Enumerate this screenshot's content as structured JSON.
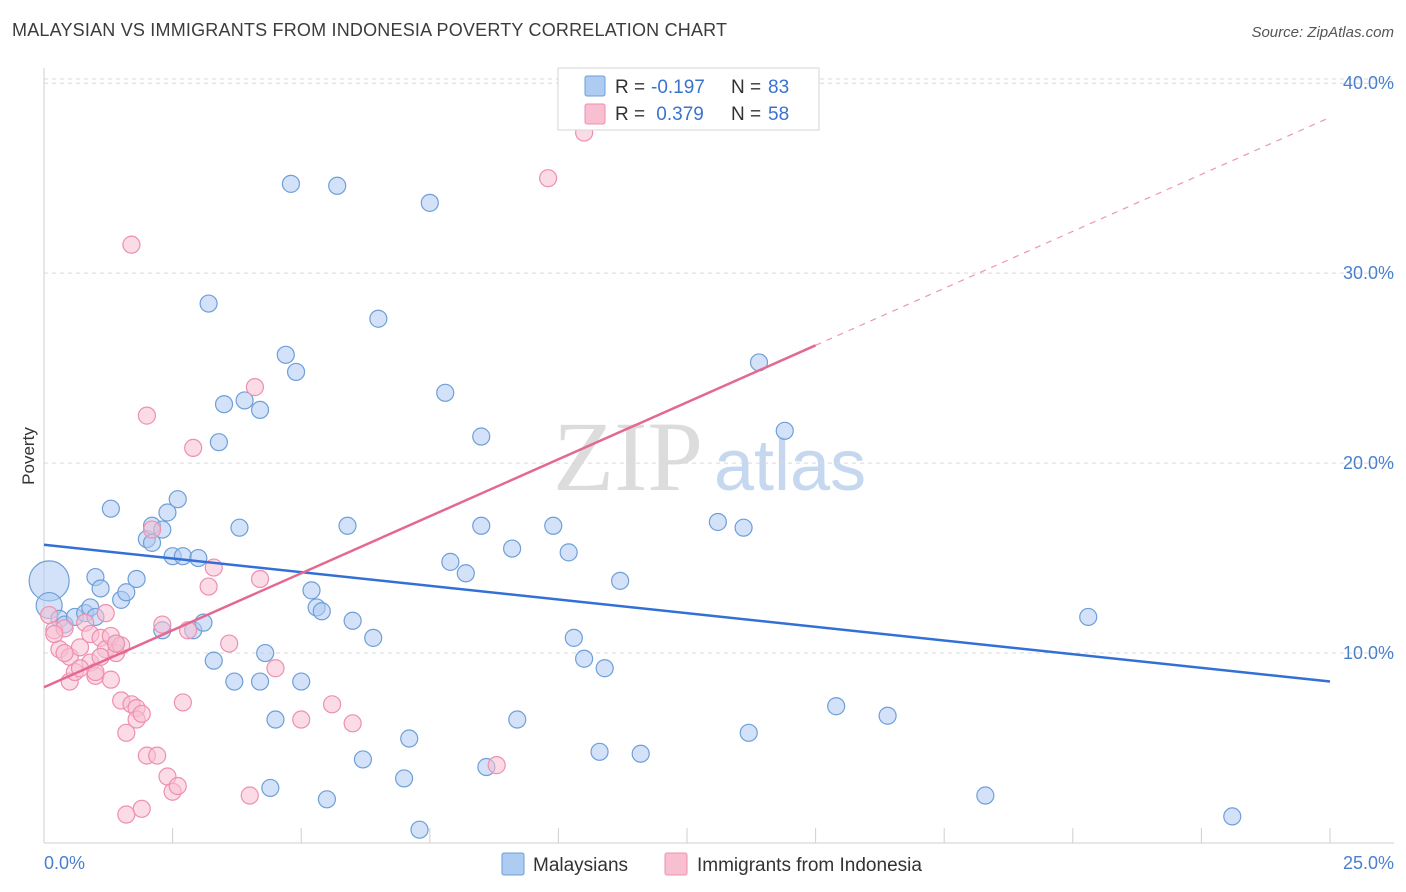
{
  "header": {
    "title": "MALAYSIAN VS IMMIGRANTS FROM INDONESIA POVERTY CORRELATION CHART",
    "source": "Source: ZipAtlas.com"
  },
  "watermark": {
    "zip": "ZIP",
    "atlas": "atlas"
  },
  "colors": {
    "malaysian_fill": "#aecbf2",
    "malaysian_stroke": "#6e9fd8",
    "malaysian_line": "#3370d6",
    "indonesia_fill": "#f8bfd1",
    "indonesia_stroke": "#ee8fb0",
    "indonesia_line": "#e4698f",
    "value_text": "#3a73cf",
    "grid": "#d9d9d9"
  },
  "legend": {
    "rows": [
      {
        "r_label": "R =",
        "r_value": "-0.197",
        "n_label": "N =",
        "n_value": "83"
      },
      {
        "r_label": "R =",
        "r_value": " 0.379",
        "n_label": "N =",
        "n_value": "58"
      }
    ]
  },
  "chart_data": {
    "type": "scatter",
    "title": "MALAYSIAN VS IMMIGRANTS FROM INDONESIA POVERTY CORRELATION CHART",
    "xlabel": "",
    "ylabel": "Poverty",
    "xlim": [
      0,
      25
    ],
    "ylim": [
      0,
      40.8
    ],
    "x_tick_labels": [
      "0.0%",
      "25.0%"
    ],
    "y_ticks": [
      10,
      20,
      30,
      40
    ],
    "y_tick_labels": [
      "10.0%",
      "20.0%",
      "30.0%",
      "40.0%"
    ],
    "grid": true,
    "series": [
      {
        "name": "Malaysians",
        "r": -0.197,
        "n": 83,
        "trend": {
          "x": [
            0,
            25
          ],
          "y": [
            15.7,
            8.5
          ]
        },
        "points": [
          {
            "x": 0.1,
            "y": 13.8,
            "s": 3
          },
          {
            "x": 0.1,
            "y": 12.5,
            "s": 2
          },
          {
            "x": 0.3,
            "y": 11.8
          },
          {
            "x": 0.4,
            "y": 11.5
          },
          {
            "x": 0.6,
            "y": 11.9
          },
          {
            "x": 0.8,
            "y": 12.1
          },
          {
            "x": 0.9,
            "y": 12.4
          },
          {
            "x": 1.0,
            "y": 11.9
          },
          {
            "x": 1.0,
            "y": 14.0
          },
          {
            "x": 1.1,
            "y": 13.4
          },
          {
            "x": 1.3,
            "y": 17.6
          },
          {
            "x": 1.4,
            "y": 10.5
          },
          {
            "x": 1.5,
            "y": 12.8
          },
          {
            "x": 1.6,
            "y": 13.2
          },
          {
            "x": 1.8,
            "y": 13.9
          },
          {
            "x": 2.0,
            "y": 16.0
          },
          {
            "x": 2.1,
            "y": 15.8
          },
          {
            "x": 2.1,
            "y": 16.7
          },
          {
            "x": 2.3,
            "y": 16.5
          },
          {
            "x": 2.3,
            "y": 11.2
          },
          {
            "x": 2.4,
            "y": 17.4
          },
          {
            "x": 2.5,
            "y": 15.1
          },
          {
            "x": 2.6,
            "y": 18.1
          },
          {
            "x": 2.7,
            "y": 15.1
          },
          {
            "x": 2.9,
            "y": 11.2
          },
          {
            "x": 3.0,
            "y": 15.0
          },
          {
            "x": 3.1,
            "y": 11.6
          },
          {
            "x": 3.2,
            "y": 28.4
          },
          {
            "x": 3.3,
            "y": 9.6
          },
          {
            "x": 3.4,
            "y": 21.1
          },
          {
            "x": 3.5,
            "y": 23.1
          },
          {
            "x": 3.7,
            "y": 8.5
          },
          {
            "x": 3.8,
            "y": 16.6
          },
          {
            "x": 3.9,
            "y": 23.3
          },
          {
            "x": 4.2,
            "y": 8.5
          },
          {
            "x": 4.2,
            "y": 22.8
          },
          {
            "x": 4.3,
            "y": 10.0
          },
          {
            "x": 4.4,
            "y": 2.9
          },
          {
            "x": 4.5,
            "y": 6.5
          },
          {
            "x": 4.7,
            "y": 25.7
          },
          {
            "x": 4.8,
            "y": 34.7
          },
          {
            "x": 4.9,
            "y": 24.8
          },
          {
            "x": 5.0,
            "y": 8.5
          },
          {
            "x": 5.2,
            "y": 13.3
          },
          {
            "x": 5.3,
            "y": 12.4
          },
          {
            "x": 5.4,
            "y": 12.2
          },
          {
            "x": 5.5,
            "y": 2.3
          },
          {
            "x": 5.7,
            "y": 34.6
          },
          {
            "x": 5.9,
            "y": 16.7
          },
          {
            "x": 6.0,
            "y": 11.7
          },
          {
            "x": 6.2,
            "y": 4.4
          },
          {
            "x": 6.4,
            "y": 10.8
          },
          {
            "x": 6.5,
            "y": 27.6
          },
          {
            "x": 7.0,
            "y": 3.4
          },
          {
            "x": 7.1,
            "y": 5.5
          },
          {
            "x": 7.3,
            "y": 0.7
          },
          {
            "x": 7.5,
            "y": 33.7
          },
          {
            "x": 7.8,
            "y": 23.7
          },
          {
            "x": 7.9,
            "y": 14.8
          },
          {
            "x": 8.2,
            "y": 14.2
          },
          {
            "x": 8.5,
            "y": 21.4
          },
          {
            "x": 8.5,
            "y": 16.7
          },
          {
            "x": 8.6,
            "y": 4.0
          },
          {
            "x": 9.1,
            "y": 15.5
          },
          {
            "x": 9.2,
            "y": 6.5
          },
          {
            "x": 9.9,
            "y": 16.7
          },
          {
            "x": 10.2,
            "y": 15.3
          },
          {
            "x": 10.3,
            "y": 10.8
          },
          {
            "x": 10.5,
            "y": 9.7
          },
          {
            "x": 10.8,
            "y": 4.8
          },
          {
            "x": 10.9,
            "y": 9.2
          },
          {
            "x": 11.2,
            "y": 13.8
          },
          {
            "x": 11.6,
            "y": 4.7
          },
          {
            "x": 13.1,
            "y": 16.9
          },
          {
            "x": 13.6,
            "y": 16.6
          },
          {
            "x": 13.7,
            "y": 5.8
          },
          {
            "x": 13.9,
            "y": 25.3
          },
          {
            "x": 14.4,
            "y": 21.7
          },
          {
            "x": 15.4,
            "y": 7.2
          },
          {
            "x": 16.4,
            "y": 6.7
          },
          {
            "x": 18.3,
            "y": 2.5
          },
          {
            "x": 20.3,
            "y": 11.9
          },
          {
            "x": 23.1,
            "y": 1.4
          }
        ]
      },
      {
        "name": "Immigrants from Indonesia",
        "r": 0.379,
        "n": 58,
        "trend": {
          "x": [
            0,
            15
          ],
          "y": [
            8.2,
            26.2
          ]
        },
        "trend_dashed": {
          "x": [
            15,
            25
          ],
          "y": [
            26.2,
            38.2
          ]
        },
        "points": [
          {
            "x": 0.1,
            "y": 12.0
          },
          {
            "x": 0.2,
            "y": 11.2
          },
          {
            "x": 0.3,
            "y": 10.2
          },
          {
            "x": 0.4,
            "y": 11.3
          },
          {
            "x": 0.5,
            "y": 9.8
          },
          {
            "x": 0.5,
            "y": 8.5
          },
          {
            "x": 0.6,
            "y": 9.0
          },
          {
            "x": 0.7,
            "y": 10.3
          },
          {
            "x": 0.8,
            "y": 11.6
          },
          {
            "x": 0.9,
            "y": 11.0
          },
          {
            "x": 0.9,
            "y": 9.5
          },
          {
            "x": 1.0,
            "y": 8.8
          },
          {
            "x": 1.0,
            "y": 9.0
          },
          {
            "x": 1.1,
            "y": 10.8
          },
          {
            "x": 1.2,
            "y": 10.2
          },
          {
            "x": 1.2,
            "y": 12.1
          },
          {
            "x": 1.3,
            "y": 8.6
          },
          {
            "x": 1.3,
            "y": 10.9
          },
          {
            "x": 1.4,
            "y": 10.0
          },
          {
            "x": 1.5,
            "y": 10.4
          },
          {
            "x": 1.5,
            "y": 7.5
          },
          {
            "x": 1.6,
            "y": 5.8
          },
          {
            "x": 1.6,
            "y": 1.5
          },
          {
            "x": 1.7,
            "y": 7.3
          },
          {
            "x": 1.7,
            "y": 31.5
          },
          {
            "x": 1.8,
            "y": 7.1
          },
          {
            "x": 1.8,
            "y": 6.5
          },
          {
            "x": 1.9,
            "y": 1.8
          },
          {
            "x": 2.0,
            "y": 4.6
          },
          {
            "x": 2.0,
            "y": 22.5
          },
          {
            "x": 2.1,
            "y": 16.5
          },
          {
            "x": 2.2,
            "y": 4.6
          },
          {
            "x": 2.3,
            "y": 11.5
          },
          {
            "x": 2.4,
            "y": 3.5
          },
          {
            "x": 2.5,
            "y": 2.7
          },
          {
            "x": 2.6,
            "y": 3.0
          },
          {
            "x": 2.7,
            "y": 7.4
          },
          {
            "x": 2.9,
            "y": 20.8
          },
          {
            "x": 3.2,
            "y": 13.5
          },
          {
            "x": 3.3,
            "y": 14.5
          },
          {
            "x": 4.0,
            "y": 2.5
          },
          {
            "x": 4.1,
            "y": 24.0
          },
          {
            "x": 4.2,
            "y": 13.9
          },
          {
            "x": 4.5,
            "y": 9.2
          },
          {
            "x": 5.0,
            "y": 6.5
          },
          {
            "x": 5.6,
            "y": 7.3
          },
          {
            "x": 6.0,
            "y": 6.3
          },
          {
            "x": 8.8,
            "y": 4.1
          },
          {
            "x": 9.8,
            "y": 35.0
          },
          {
            "x": 10.5,
            "y": 37.4
          },
          {
            "x": 0.2,
            "y": 11.0
          },
          {
            "x": 0.4,
            "y": 10.0
          },
          {
            "x": 0.7,
            "y": 9.2
          },
          {
            "x": 1.1,
            "y": 9.8
          },
          {
            "x": 1.4,
            "y": 10.5
          },
          {
            "x": 1.9,
            "y": 6.8
          },
          {
            "x": 2.8,
            "y": 11.2
          },
          {
            "x": 3.6,
            "y": 10.5
          }
        ]
      }
    ]
  },
  "bottom_legend": {
    "items": [
      {
        "label": "Malaysians"
      },
      {
        "label": "Immigrants from Indonesia"
      }
    ]
  }
}
